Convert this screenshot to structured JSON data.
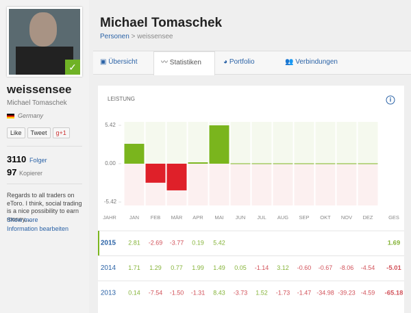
{
  "profile": {
    "username": "weissensee",
    "full_name": "Michael Tomaschek",
    "country": "Germany",
    "buttons": [
      "Like",
      "Tweet",
      "g+1"
    ],
    "followers": {
      "count": "3110",
      "label": "Folger"
    },
    "copiers": {
      "count": "97",
      "label": "Kopierer"
    },
    "bio": "Regards to all traders on eToro. I think, social trading is a nice possibility to earn money,...",
    "show_more": "Show more",
    "edit": "Information bearbeiten"
  },
  "header": {
    "title": "Michael Tomaschek",
    "breadcrumb": [
      "Personen",
      ">",
      "weissensee"
    ]
  },
  "tabs": [
    "Übersicht",
    "Statistiken",
    "Portfolio",
    "Verbindungen"
  ],
  "chart_data": {
    "type": "bar",
    "title": "LEISTUNG",
    "categories": [
      "JAN",
      "FEB",
      "MÄR",
      "APR",
      "MAI",
      "JUN",
      "JUL",
      "AUG",
      "SEP",
      "OKT",
      "NOV",
      "DEZ"
    ],
    "values": [
      2.81,
      -2.69,
      -3.77,
      0.19,
      5.42,
      null,
      null,
      null,
      null,
      null,
      null,
      null
    ],
    "positive_color": "#7ab51d",
    "negative_color": "#df2029",
    "ylim": [
      -5.42,
      5.42
    ],
    "yticks": [
      -5.42,
      {
        "value": 0,
        "label": "0.00"
      },
      5.42
    ]
  },
  "table": {
    "header": {
      "first": "JAHR",
      "last": "GES"
    },
    "rows": [
      {
        "year": "2015",
        "values": [
          "2.81",
          "-2.69",
          "-3.77",
          "0.19",
          "5.42",
          null,
          null,
          null,
          null,
          null,
          null,
          null
        ],
        "total": "1.69"
      },
      {
        "year": "2014",
        "values": [
          "1.71",
          "1.29",
          "0.77",
          "1.99",
          "1.49",
          "0.05",
          "-1.14",
          "3.12",
          "-0.60",
          "-0.67",
          "-8.06",
          "-4.54"
        ],
        "total": "-5.01"
      },
      {
        "year": "2013",
        "values": [
          "0.14",
          "-7.54",
          "-1.50",
          "-1.31",
          "8.43",
          "-3.73",
          "1.52",
          "-1.73",
          "-1.47",
          "-34.98",
          "-39.23",
          "-4.59"
        ],
        "total": "-65.18"
      }
    ]
  }
}
